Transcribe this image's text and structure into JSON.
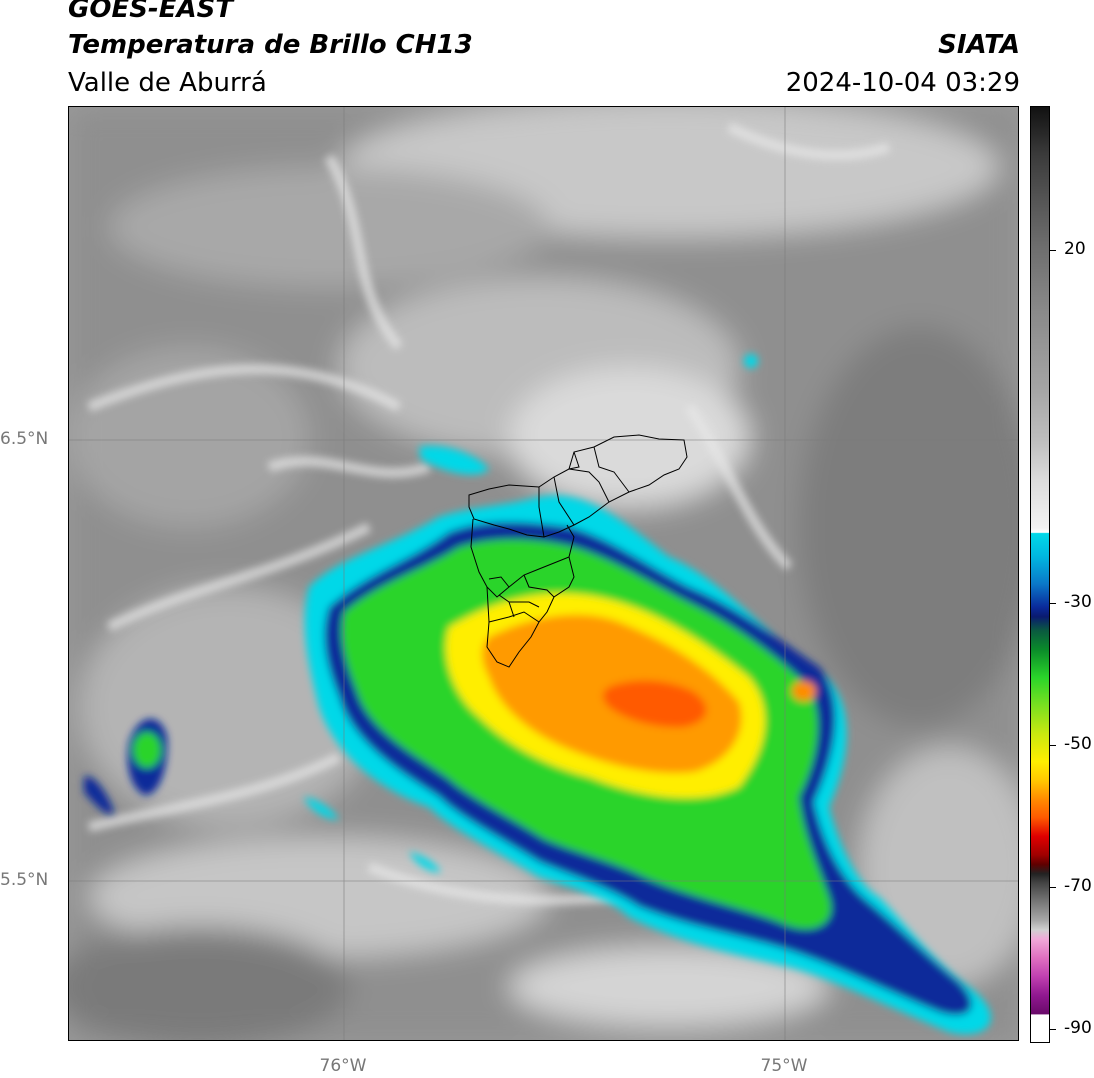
{
  "header": {
    "satellite": "GOES-EAST",
    "product": "Temperatura de Brillo CH13",
    "region": "Valle de Aburrá",
    "organization": "SIATA",
    "timestamp": "2024-10-04 03:29"
  },
  "map": {
    "lat_labels": [
      "6.5°N",
      "5.5°N"
    ],
    "lon_labels": [
      "76°W",
      "75°W"
    ]
  },
  "colorbar": {
    "ticks": [
      "20",
      "-30",
      "-50",
      "-70",
      "-90"
    ],
    "colors": {
      "black": "#111111",
      "gray": "#8a8a8a",
      "white": "#f2f2f2",
      "cyan": "#00d8e8",
      "blue": "#0a2a9a",
      "green": "#2ad42a",
      "yellow": "#ffee00",
      "orange": "#ff8c00",
      "red": "#e00000",
      "darkred": "#600000",
      "magenta": "#b020b0",
      "purple": "#6a0a6a"
    }
  }
}
